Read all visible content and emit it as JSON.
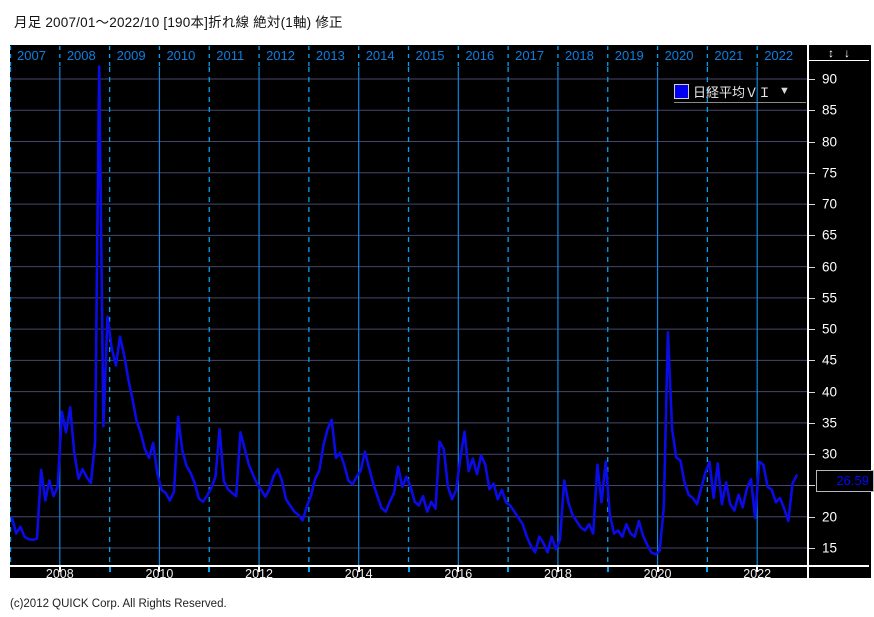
{
  "header": {
    "title": "月足  2007/01～2022/10 [190本]折れ線 絶対(1軸) 修正"
  },
  "legend": {
    "series_label": "日経平均ＶＩ",
    "dropdown_icon": "▼",
    "swatch_color": "#0000ee"
  },
  "toolbar": {
    "resize_vertical_glyph": "↕",
    "arrow_down_glyph": "↓"
  },
  "current_value": {
    "label": "26.59",
    "text_color": "#0008ff"
  },
  "footer": {
    "copyright": "(c)2012 QUICK Corp. All Rights Reserved."
  },
  "colors": {
    "chart_background": "#000000",
    "series_line": "#0b0be6",
    "year_label_text": "#0d7ee0",
    "year_line_dashed": "#00a2f3",
    "year_line_solid": "#0a85e0",
    "horizontal_gridline": "#46466a",
    "axis_text": "#ffffff",
    "tick_odd_year": "#00a2f3",
    "tick_even_year": "#ffffff"
  },
  "chart_data": {
    "type": "line",
    "title": "日経平均ＶＩ 月足 2007/01～2022/10",
    "bar_count": 190,
    "x_start": "2007/01",
    "x_end": "2022/10",
    "top_year_labels": [
      "2007",
      "2008",
      "2009",
      "2010",
      "2011",
      "2012",
      "2013",
      "2014",
      "2015",
      "2016",
      "2017",
      "2018",
      "2019",
      "2020",
      "2021",
      "2022"
    ],
    "bottom_axis_labels": [
      "2008",
      "2010",
      "2012",
      "2014",
      "2016",
      "2018",
      "2020",
      "2022"
    ],
    "y_axis": {
      "position": "right",
      "ticks": [
        90,
        85,
        80,
        75,
        70,
        65,
        60,
        55,
        50,
        45,
        40,
        35,
        30,
        25,
        20,
        15
      ],
      "grid_step": 5,
      "ylim": [
        12.3,
        91.9
      ]
    },
    "grid": {
      "horizontal": "on",
      "vertical": "year-boundaries"
    },
    "legend_position": "top-right",
    "series": [
      {
        "name": "日経平均ＶＩ",
        "color": "#0b0be6",
        "first_month": "2007-01",
        "monthly_values": [
          19.8,
          17.3,
          18.4,
          16.8,
          16.4,
          16.3,
          16.5,
          27.5,
          22.6,
          25.8,
          23.3,
          24.8,
          36.8,
          33.5,
          37.5,
          30.2,
          26.1,
          27.6,
          26.3,
          25.4,
          32.0,
          92.0,
          34.5,
          52.0,
          47.0,
          44.2,
          48.8,
          45.8,
          42.0,
          38.8,
          35.3,
          33.4,
          30.8,
          29.4,
          31.8,
          26.8,
          24.3,
          23.8,
          22.6,
          24.0,
          36.0,
          30.6,
          28.2,
          27.0,
          25.4,
          22.9,
          22.4,
          23.4,
          24.6,
          26.4,
          34.0,
          25.7,
          24.4,
          23.8,
          23.3,
          33.5,
          31.0,
          28.4,
          26.8,
          25.3,
          24.3,
          23.2,
          24.4,
          26.5,
          27.6,
          25.8,
          22.8,
          21.8,
          20.8,
          20.3,
          19.4,
          21.6,
          23.4,
          26.0,
          27.4,
          31.4,
          34.0,
          35.5,
          29.4,
          30.2,
          28.3,
          25.8,
          25.2,
          26.4,
          27.4,
          30.4,
          27.8,
          25.3,
          23.3,
          21.4,
          20.8,
          22.4,
          23.8,
          28.0,
          24.8,
          26.4,
          24.8,
          22.4,
          21.8,
          23.3,
          20.8,
          22.4,
          21.3,
          32.0,
          30.8,
          24.8,
          22.8,
          24.3,
          29.4,
          33.6,
          27.3,
          29.3,
          26.8,
          29.8,
          28.3,
          24.4,
          25.3,
          22.8,
          24.3,
          22.3,
          21.8,
          20.8,
          19.8,
          18.8,
          16.8,
          15.3,
          14.3,
          16.8,
          15.8,
          14.3,
          16.8,
          14.8,
          16.3,
          25.8,
          22.3,
          20.3,
          19.3,
          18.3,
          17.8,
          18.8,
          17.3,
          28.3,
          22.3,
          28.8,
          20.3,
          17.3,
          17.8,
          16.8,
          18.8,
          17.3,
          16.8,
          19.3,
          17.0,
          15.5,
          14.3,
          14.0,
          14.5,
          21.5,
          49.5,
          34.0,
          29.5,
          29.0,
          25.5,
          23.5,
          23.0,
          22.0,
          24.5,
          27.0,
          28.8,
          23.0,
          28.5,
          22.0,
          25.5,
          22.0,
          21.0,
          23.5,
          21.5,
          24.5,
          26.0,
          19.8,
          28.8,
          28.3,
          24.8,
          24.3,
          22.3,
          23.0,
          21.3,
          19.3,
          25.3,
          26.59
        ],
        "last_value": 26.59
      }
    ]
  }
}
